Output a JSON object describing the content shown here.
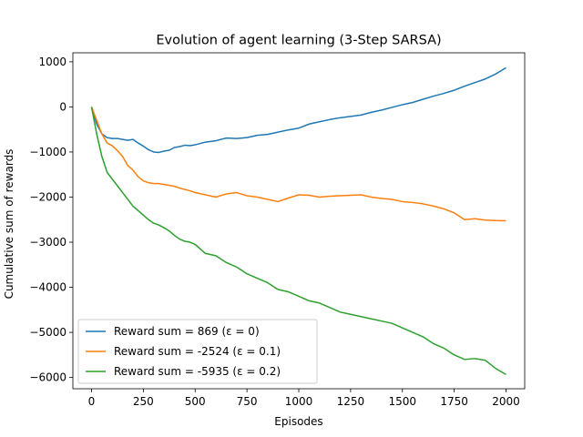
{
  "chart_data": {
    "type": "line",
    "title": "Evolution of agent learning (3-Step SARSA)",
    "xlabel": "Episodes",
    "ylabel": "Cumulative sum of rewards",
    "xlim": [
      -90,
      2090
    ],
    "ylim": [
      -6250,
      1200
    ],
    "xticks": [
      0,
      250,
      500,
      750,
      1000,
      1250,
      1500,
      1750,
      2000
    ],
    "yticks": [
      -6000,
      -5000,
      -4000,
      -3000,
      -2000,
      -1000,
      0,
      1000
    ],
    "grid": false,
    "legend_position": "lower-left",
    "series": [
      {
        "name": "Reward sum = 869 (ε = 0)",
        "color": "#1f77b4",
        "x": [
          0,
          25,
          50,
          75,
          100,
          125,
          150,
          175,
          200,
          225,
          250,
          275,
          300,
          325,
          350,
          375,
          400,
          425,
          450,
          475,
          500,
          550,
          600,
          650,
          700,
          750,
          800,
          850,
          900,
          950,
          1000,
          1050,
          1100,
          1150,
          1200,
          1250,
          1300,
          1350,
          1400,
          1450,
          1500,
          1550,
          1600,
          1650,
          1700,
          1750,
          1800,
          1850,
          1900,
          1950,
          2000
        ],
        "y": [
          0,
          -380,
          -600,
          -680,
          -700,
          -700,
          -720,
          -740,
          -720,
          -800,
          -870,
          -950,
          -1000,
          -1010,
          -980,
          -960,
          -900,
          -880,
          -850,
          -860,
          -840,
          -780,
          -750,
          -690,
          -700,
          -680,
          -630,
          -610,
          -560,
          -510,
          -470,
          -380,
          -330,
          -280,
          -240,
          -210,
          -180,
          -120,
          -70,
          -10,
          50,
          100,
          170,
          240,
          300,
          370,
          460,
          540,
          620,
          730,
          869
        ]
      },
      {
        "name": "Reward sum = -2524 (ε = 0.1)",
        "color": "#ff7f0e",
        "x": [
          0,
          25,
          50,
          75,
          100,
          125,
          150,
          175,
          200,
          225,
          250,
          275,
          300,
          325,
          350,
          375,
          400,
          425,
          450,
          475,
          500,
          550,
          600,
          650,
          700,
          750,
          800,
          850,
          900,
          950,
          1000,
          1050,
          1100,
          1150,
          1200,
          1250,
          1300,
          1350,
          1400,
          1450,
          1500,
          1550,
          1600,
          1650,
          1700,
          1750,
          1800,
          1850,
          1900,
          1950,
          2000
        ],
        "y": [
          0,
          -300,
          -600,
          -800,
          -860,
          -970,
          -1100,
          -1300,
          -1400,
          -1550,
          -1640,
          -1680,
          -1700,
          -1700,
          -1720,
          -1740,
          -1760,
          -1800,
          -1830,
          -1860,
          -1900,
          -1950,
          -2000,
          -1930,
          -1900,
          -1970,
          -2000,
          -2050,
          -2100,
          -2020,
          -1950,
          -1960,
          -2000,
          -1980,
          -1970,
          -1960,
          -1950,
          -2000,
          -2030,
          -2050,
          -2100,
          -2120,
          -2150,
          -2200,
          -2260,
          -2350,
          -2500,
          -2480,
          -2510,
          -2520,
          -2524
        ]
      },
      {
        "name": "Reward sum = -5935 (ε = 0.2)",
        "color": "#2ca02c",
        "x": [
          0,
          25,
          50,
          75,
          100,
          125,
          150,
          175,
          200,
          225,
          250,
          275,
          300,
          325,
          350,
          375,
          400,
          425,
          450,
          475,
          500,
          550,
          600,
          650,
          700,
          750,
          800,
          850,
          900,
          950,
          1000,
          1050,
          1100,
          1150,
          1200,
          1250,
          1300,
          1350,
          1400,
          1450,
          1500,
          1550,
          1600,
          1650,
          1700,
          1750,
          1800,
          1850,
          1900,
          1950,
          2000
        ],
        "y": [
          0,
          -600,
          -1100,
          -1450,
          -1600,
          -1750,
          -1900,
          -2050,
          -2200,
          -2300,
          -2400,
          -2500,
          -2580,
          -2620,
          -2680,
          -2750,
          -2850,
          -2930,
          -2980,
          -3000,
          -3050,
          -3250,
          -3300,
          -3450,
          -3550,
          -3700,
          -3800,
          -3900,
          -4050,
          -4100,
          -4200,
          -4300,
          -4350,
          -4450,
          -4550,
          -4600,
          -4650,
          -4700,
          -4750,
          -4800,
          -4900,
          -5000,
          -5100,
          -5250,
          -5350,
          -5500,
          -5600,
          -5580,
          -5620,
          -5800,
          -5935
        ]
      }
    ]
  }
}
